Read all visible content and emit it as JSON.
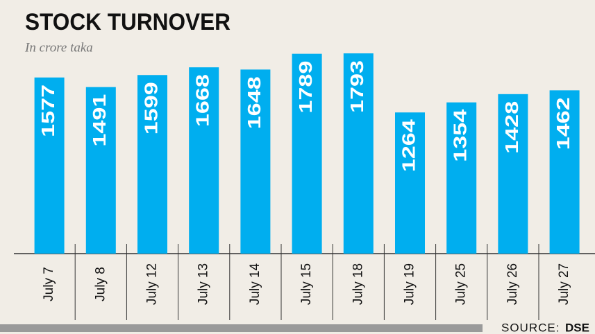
{
  "chart_data": {
    "type": "bar",
    "title": "STOCK TURNOVER",
    "subtitle": "In crore taka",
    "categories": [
      "July 7",
      "July 8",
      "July 12",
      "July 13",
      "July 14",
      "July 15",
      "July 18",
      "July 19",
      "July 25",
      "July 26",
      "July 27"
    ],
    "values": [
      1577,
      1491,
      1599,
      1668,
      1648,
      1789,
      1793,
      1264,
      1354,
      1428,
      1462
    ],
    "color": "#00aeef",
    "source_label": "SOURCE:",
    "source": "DSE"
  }
}
